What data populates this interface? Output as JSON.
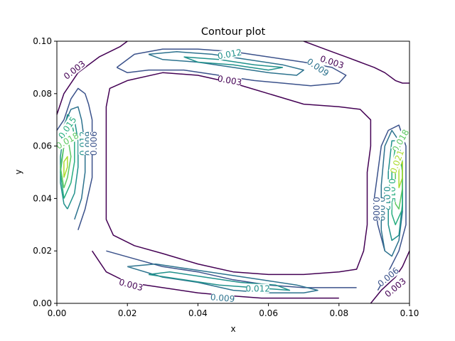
{
  "chart_data": {
    "type": "contour",
    "title": "Contour plot",
    "xlabel": "x",
    "ylabel": "y",
    "xlim": [
      0.0,
      0.1
    ],
    "ylim": [
      0.0,
      0.1
    ],
    "xticks": [
      "0.00",
      "0.02",
      "0.04",
      "0.06",
      "0.08",
      "0.10"
    ],
    "yticks": [
      "0.00",
      "0.02",
      "0.04",
      "0.06",
      "0.08",
      "0.10"
    ],
    "levels": [
      0.003,
      0.006,
      0.009,
      0.012,
      0.015,
      0.018,
      0.021
    ],
    "level_colors": {
      "0.003": "#440154",
      "0.006": "#3b528b",
      "0.009": "#2c728e",
      "0.012": "#21918c",
      "0.015": "#28ae80",
      "0.018": "#5ec962",
      "0.021": "#addc30",
      "0.024": "#fde725"
    },
    "grid": false,
    "contours": [
      {
        "level": 0.003,
        "points": [
          [
            0.0,
            0.072
          ],
          [
            0.002,
            0.08
          ],
          [
            0.006,
            0.088
          ],
          [
            0.012,
            0.094
          ],
          [
            0.018,
            0.098
          ],
          [
            0.02,
            0.1
          ]
        ]
      },
      {
        "level": 0.003,
        "points": [
          [
            0.07,
            0.1
          ],
          [
            0.074,
            0.098
          ],
          [
            0.078,
            0.096
          ],
          [
            0.082,
            0.094
          ],
          [
            0.086,
            0.092
          ],
          [
            0.09,
            0.09
          ],
          [
            0.093,
            0.088
          ],
          [
            0.096,
            0.085
          ],
          [
            0.098,
            0.084
          ],
          [
            0.1,
            0.084
          ]
        ]
      },
      {
        "level": 0.003,
        "points": [
          [
            0.02,
            0.085
          ],
          [
            0.03,
            0.088
          ],
          [
            0.04,
            0.087
          ],
          [
            0.05,
            0.084
          ],
          [
            0.06,
            0.08
          ],
          [
            0.07,
            0.076
          ],
          [
            0.08,
            0.075
          ],
          [
            0.086,
            0.074
          ],
          [
            0.089,
            0.07
          ],
          [
            0.089,
            0.06
          ],
          [
            0.088,
            0.05
          ],
          [
            0.088,
            0.04
          ],
          [
            0.088,
            0.03
          ],
          [
            0.087,
            0.02
          ],
          [
            0.085,
            0.013
          ],
          [
            0.08,
            0.012
          ],
          [
            0.07,
            0.011
          ],
          [
            0.06,
            0.011
          ],
          [
            0.05,
            0.012
          ],
          [
            0.04,
            0.015
          ],
          [
            0.03,
            0.019
          ],
          [
            0.022,
            0.022
          ],
          [
            0.016,
            0.026
          ],
          [
            0.014,
            0.032
          ],
          [
            0.014,
            0.045
          ],
          [
            0.014,
            0.06
          ],
          [
            0.014,
            0.075
          ],
          [
            0.015,
            0.082
          ],
          [
            0.02,
            0.085
          ]
        ]
      },
      {
        "level": 0.003,
        "points": [
          [
            0.01,
            0.02
          ],
          [
            0.014,
            0.012
          ],
          [
            0.02,
            0.008
          ],
          [
            0.03,
            0.006
          ],
          [
            0.04,
            0.004
          ],
          [
            0.048,
            0.003
          ],
          [
            0.058,
            0.002
          ],
          [
            0.07,
            0.002
          ],
          [
            0.08,
            0.002
          ]
        ]
      },
      {
        "level": 0.003,
        "points": [
          [
            0.089,
            0.0
          ],
          [
            0.092,
            0.005
          ],
          [
            0.096,
            0.01
          ],
          [
            0.098,
            0.014
          ],
          [
            0.1,
            0.02
          ]
        ]
      },
      {
        "level": 0.006,
        "points": [
          [
            0.006,
            0.028
          ],
          [
            0.008,
            0.036
          ],
          [
            0.01,
            0.048
          ],
          [
            0.01,
            0.06
          ],
          [
            0.01,
            0.07
          ],
          [
            0.009,
            0.076
          ],
          [
            0.008,
            0.08
          ],
          [
            0.006,
            0.082
          ],
          [
            0.004,
            0.078
          ],
          [
            0.002,
            0.07
          ],
          [
            0.0,
            0.066
          ]
        ]
      },
      {
        "level": 0.006,
        "points": [
          [
            0.017,
            0.09
          ],
          [
            0.022,
            0.095
          ],
          [
            0.03,
            0.097
          ],
          [
            0.04,
            0.097
          ],
          [
            0.05,
            0.096
          ],
          [
            0.06,
            0.094
          ],
          [
            0.07,
            0.092
          ],
          [
            0.078,
            0.09
          ],
          [
            0.082,
            0.087
          ],
          [
            0.08,
            0.084
          ],
          [
            0.072,
            0.083
          ],
          [
            0.064,
            0.084
          ],
          [
            0.056,
            0.085
          ],
          [
            0.046,
            0.087
          ],
          [
            0.036,
            0.089
          ],
          [
            0.026,
            0.089
          ],
          [
            0.02,
            0.088
          ],
          [
            0.017,
            0.09
          ]
        ]
      },
      {
        "level": 0.006,
        "points": [
          [
            0.014,
            0.02
          ],
          [
            0.022,
            0.017
          ],
          [
            0.03,
            0.014
          ],
          [
            0.04,
            0.012
          ],
          [
            0.05,
            0.009
          ],
          [
            0.06,
            0.007
          ],
          [
            0.07,
            0.006
          ],
          [
            0.08,
            0.006
          ],
          [
            0.085,
            0.006
          ]
        ]
      },
      {
        "level": 0.006,
        "points": [
          [
            0.091,
            0.005
          ],
          [
            0.094,
            0.012
          ],
          [
            0.097,
            0.02
          ],
          [
            0.099,
            0.03
          ],
          [
            0.099,
            0.045
          ],
          [
            0.099,
            0.06
          ],
          [
            0.097,
            0.068
          ],
          [
            0.094,
            0.066
          ],
          [
            0.092,
            0.06
          ],
          [
            0.091,
            0.05
          ],
          [
            0.09,
            0.04
          ],
          [
            0.091,
            0.03
          ],
          [
            0.093,
            0.02
          ]
        ]
      },
      {
        "level": 0.009,
        "points": [
          [
            0.005,
            0.032
          ],
          [
            0.007,
            0.04
          ],
          [
            0.008,
            0.05
          ],
          [
            0.008,
            0.06
          ],
          [
            0.007,
            0.07
          ],
          [
            0.006,
            0.075
          ],
          [
            0.004,
            0.074
          ],
          [
            0.002,
            0.068
          ],
          [
            0.001,
            0.06
          ]
        ]
      },
      {
        "level": 0.009,
        "points": [
          [
            0.026,
            0.095
          ],
          [
            0.034,
            0.096
          ],
          [
            0.044,
            0.095
          ],
          [
            0.054,
            0.093
          ],
          [
            0.064,
            0.091
          ],
          [
            0.07,
            0.089
          ],
          [
            0.068,
            0.087
          ],
          [
            0.06,
            0.088
          ],
          [
            0.05,
            0.09
          ],
          [
            0.04,
            0.092
          ],
          [
            0.03,
            0.093
          ],
          [
            0.026,
            0.095
          ]
        ]
      },
      {
        "level": 0.009,
        "points": [
          [
            0.02,
            0.014
          ],
          [
            0.03,
            0.01
          ],
          [
            0.04,
            0.008
          ],
          [
            0.05,
            0.005
          ],
          [
            0.06,
            0.004
          ],
          [
            0.07,
            0.004
          ],
          [
            0.074,
            0.005
          ],
          [
            0.068,
            0.007
          ],
          [
            0.058,
            0.009
          ],
          [
            0.048,
            0.011
          ],
          [
            0.038,
            0.013
          ],
          [
            0.028,
            0.015
          ],
          [
            0.02,
            0.014
          ]
        ]
      },
      {
        "level": 0.009,
        "points": [
          [
            0.092,
            0.028
          ],
          [
            0.093,
            0.02
          ],
          [
            0.095,
            0.018
          ],
          [
            0.097,
            0.024
          ],
          [
            0.098,
            0.035
          ],
          [
            0.098,
            0.05
          ],
          [
            0.097,
            0.062
          ],
          [
            0.095,
            0.066
          ],
          [
            0.093,
            0.06
          ],
          [
            0.092,
            0.045
          ],
          [
            0.092,
            0.028
          ]
        ]
      },
      {
        "level": 0.012,
        "points": [
          [
            0.003,
            0.036
          ],
          [
            0.005,
            0.042
          ],
          [
            0.006,
            0.052
          ],
          [
            0.006,
            0.062
          ],
          [
            0.005,
            0.07
          ],
          [
            0.003,
            0.072
          ],
          [
            0.002,
            0.066
          ],
          [
            0.001,
            0.056
          ],
          [
            0.001,
            0.046
          ],
          [
            0.002,
            0.038
          ],
          [
            0.003,
            0.036
          ]
        ]
      },
      {
        "level": 0.012,
        "points": [
          [
            0.036,
            0.094
          ],
          [
            0.046,
            0.093
          ],
          [
            0.056,
            0.091
          ],
          [
            0.064,
            0.09
          ],
          [
            0.06,
            0.089
          ],
          [
            0.05,
            0.091
          ],
          [
            0.04,
            0.092
          ],
          [
            0.036,
            0.094
          ]
        ]
      },
      {
        "level": 0.012,
        "points": [
          [
            0.026,
            0.011
          ],
          [
            0.036,
            0.009
          ],
          [
            0.046,
            0.007
          ],
          [
            0.056,
            0.006
          ],
          [
            0.066,
            0.005
          ],
          [
            0.062,
            0.007
          ],
          [
            0.052,
            0.008
          ],
          [
            0.042,
            0.01
          ],
          [
            0.032,
            0.012
          ],
          [
            0.026,
            0.011
          ]
        ]
      },
      {
        "level": 0.012,
        "points": [
          [
            0.094,
            0.03
          ],
          [
            0.095,
            0.024
          ],
          [
            0.097,
            0.026
          ],
          [
            0.098,
            0.038
          ],
          [
            0.098,
            0.052
          ],
          [
            0.097,
            0.062
          ],
          [
            0.095,
            0.062
          ],
          [
            0.094,
            0.05
          ],
          [
            0.094,
            0.03
          ]
        ]
      },
      {
        "level": 0.015,
        "points": [
          [
            0.002,
            0.04
          ],
          [
            0.004,
            0.046
          ],
          [
            0.005,
            0.054
          ],
          [
            0.005,
            0.064
          ],
          [
            0.004,
            0.07
          ],
          [
            0.003,
            0.068
          ],
          [
            0.002,
            0.06
          ],
          [
            0.001,
            0.05
          ],
          [
            0.002,
            0.04
          ]
        ]
      },
      {
        "level": 0.015,
        "points": [
          [
            0.095,
            0.034
          ],
          [
            0.096,
            0.03
          ],
          [
            0.098,
            0.036
          ],
          [
            0.098,
            0.05
          ],
          [
            0.097,
            0.06
          ],
          [
            0.096,
            0.06
          ],
          [
            0.095,
            0.05
          ],
          [
            0.095,
            0.034
          ]
        ]
      },
      {
        "level": 0.018,
        "points": [
          [
            0.002,
            0.044
          ],
          [
            0.003,
            0.048
          ],
          [
            0.004,
            0.056
          ],
          [
            0.003,
            0.064
          ],
          [
            0.002,
            0.06
          ],
          [
            0.001,
            0.052
          ],
          [
            0.002,
            0.044
          ]
        ]
      },
      {
        "level": 0.018,
        "points": [
          [
            0.096,
            0.038
          ],
          [
            0.097,
            0.036
          ],
          [
            0.098,
            0.044
          ],
          [
            0.098,
            0.054
          ],
          [
            0.097,
            0.06
          ],
          [
            0.096,
            0.056
          ],
          [
            0.096,
            0.044
          ],
          [
            0.096,
            0.038
          ]
        ]
      },
      {
        "level": 0.021,
        "points": [
          [
            0.002,
            0.048
          ],
          [
            0.003,
            0.052
          ],
          [
            0.003,
            0.056
          ],
          [
            0.002,
            0.054
          ],
          [
            0.002,
            0.048
          ]
        ]
      },
      {
        "level": 0.021,
        "points": [
          [
            0.097,
            0.044
          ],
          [
            0.098,
            0.048
          ],
          [
            0.098,
            0.054
          ],
          [
            0.097,
            0.052
          ],
          [
            0.097,
            0.044
          ]
        ]
      }
    ],
    "contour_labels": [
      {
        "text": "0.003",
        "x": 0.005,
        "y": 0.089,
        "angle": -38,
        "level": 0.003
      },
      {
        "text": "0.012",
        "x": 0.049,
        "y": 0.095,
        "angle": -10,
        "level": 0.012
      },
      {
        "text": "0.003",
        "x": 0.078,
        "y": 0.092,
        "angle": 18,
        "level": 0.003
      },
      {
        "text": "0.009",
        "x": 0.074,
        "y": 0.09,
        "angle": 35,
        "level": 0.009
      },
      {
        "text": "0.003",
        "x": 0.049,
        "y": 0.085,
        "angle": 10,
        "level": 0.003
      },
      {
        "text": "0.015",
        "x": 0.003,
        "y": 0.067,
        "angle": -55,
        "level": 0.015
      },
      {
        "text": "0.018",
        "x": 0.003,
        "y": 0.062,
        "angle": -30,
        "level": 0.018
      },
      {
        "text": "0.012",
        "x": 0.0075,
        "y": 0.061,
        "angle": -90,
        "level": 0.012
      },
      {
        "text": "0.009",
        "x": 0.009,
        "y": 0.061,
        "angle": -90,
        "level": 0.009
      },
      {
        "text": "0.006",
        "x": 0.0105,
        "y": 0.061,
        "angle": -90,
        "level": 0.006
      },
      {
        "text": "0.018",
        "x": 0.0975,
        "y": 0.062,
        "angle": -60,
        "level": 0.018
      },
      {
        "text": "0.021",
        "x": 0.0965,
        "y": 0.054,
        "angle": -70,
        "level": 0.021
      },
      {
        "text": "0.015",
        "x": 0.095,
        "y": 0.043,
        "angle": 90,
        "level": 0.015
      },
      {
        "text": "0.012",
        "x": 0.0935,
        "y": 0.04,
        "angle": 90,
        "level": 0.012
      },
      {
        "text": "0.009",
        "x": 0.092,
        "y": 0.036,
        "angle": 90,
        "level": 0.009
      },
      {
        "text": "0.006",
        "x": 0.0905,
        "y": 0.036,
        "angle": 90,
        "level": 0.006
      },
      {
        "text": "0.003",
        "x": 0.021,
        "y": 0.007,
        "angle": 15,
        "level": 0.003
      },
      {
        "text": "0.009",
        "x": 0.047,
        "y": 0.002,
        "angle": 5,
        "level": 0.009
      },
      {
        "text": "0.012",
        "x": 0.057,
        "y": 0.0055,
        "angle": 0,
        "level": 0.012
      },
      {
        "text": "0.006",
        "x": 0.094,
        "y": 0.01,
        "angle": -40,
        "level": 0.006
      },
      {
        "text": "0.003",
        "x": 0.096,
        "y": 0.006,
        "angle": -40,
        "level": 0.003
      }
    ]
  }
}
